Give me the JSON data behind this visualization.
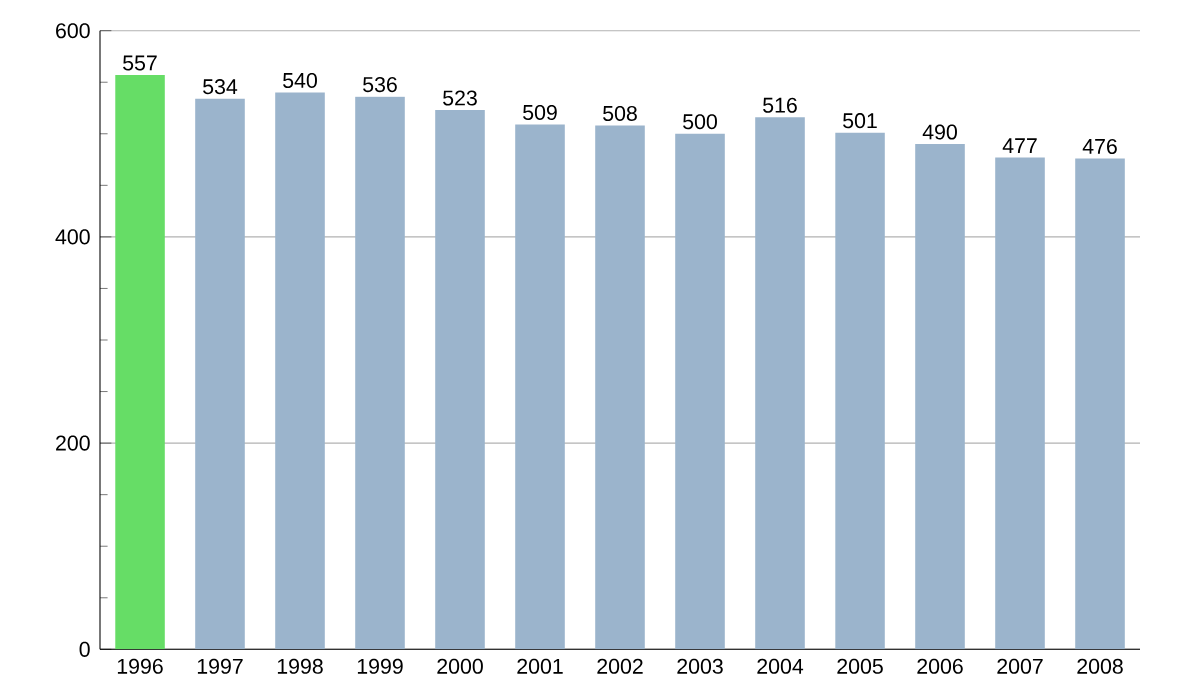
{
  "chart_data": {
    "type": "bar",
    "categories": [
      "1996",
      "1997",
      "1998",
      "1999",
      "2000",
      "2001",
      "2002",
      "2003",
      "2004",
      "2005",
      "2006",
      "2007",
      "2008"
    ],
    "values": [
      557,
      534,
      540,
      536,
      523,
      509,
      508,
      500,
      516,
      501,
      490,
      477,
      476
    ],
    "colors": [
      "#66dd66",
      "#9bb4cc",
      "#9bb4cc",
      "#9bb4cc",
      "#9bb4cc",
      "#9bb4cc",
      "#9bb4cc",
      "#9bb4cc",
      "#9bb4cc",
      "#9bb4cc",
      "#9bb4cc",
      "#9bb4cc",
      "#9bb4cc"
    ],
    "ylim": [
      0,
      600
    ],
    "yticks": [
      0,
      200,
      400,
      600
    ],
    "grid": "y",
    "data_labels": true
  }
}
